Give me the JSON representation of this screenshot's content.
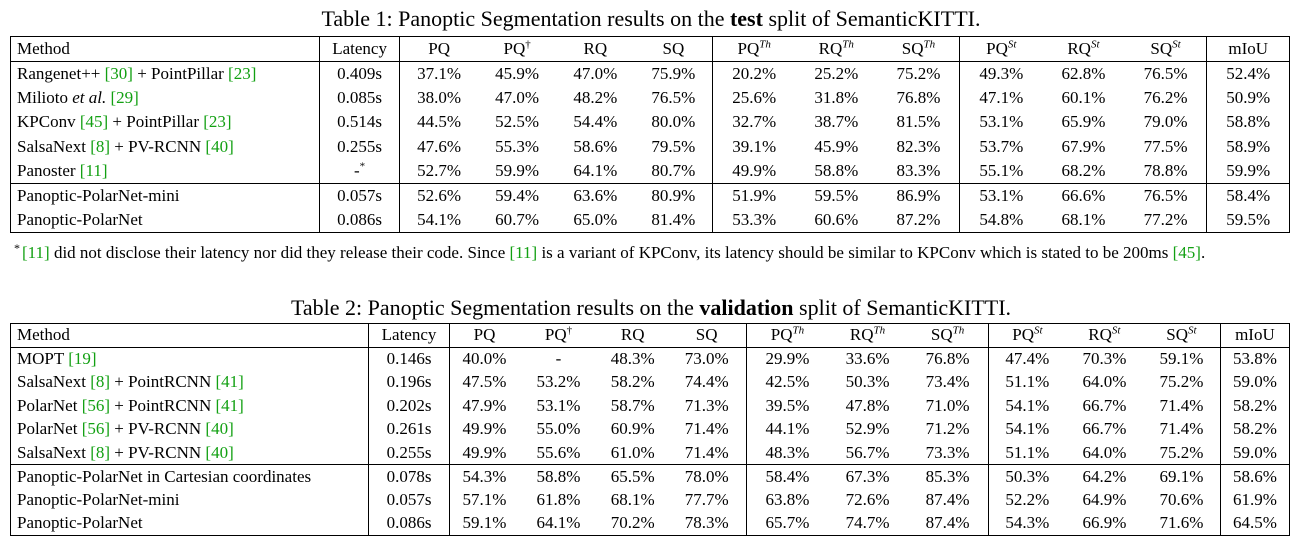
{
  "table1": {
    "caption_prefix": "Table 1: Panoptic Segmentation results on the ",
    "caption_bold": "test",
    "caption_suffix": " split of SemanticKITTI.",
    "headers": [
      "Method",
      "Latency",
      "PQ",
      "PQ",
      "RQ",
      "SQ",
      "PQ",
      "RQ",
      "SQ",
      "PQ",
      "RQ",
      "SQ",
      "mIoU"
    ],
    "header_sups": [
      "",
      "",
      "",
      "†",
      "",
      "",
      "Th",
      "Th",
      "Th",
      "St",
      "St",
      "St",
      ""
    ],
    "groups": [
      [
        {
          "method": [
            {
              "t": "Rangenet++ "
            },
            {
              "t": "[30]",
              "c": 1
            },
            {
              "t": " + PointPillar "
            },
            {
              "t": "[23]",
              "c": 1
            }
          ],
          "cells": [
            "0.409s",
            "37.1%",
            "45.9%",
            "47.0%",
            "75.9%",
            "20.2%",
            "25.2%",
            "75.2%",
            "49.3%",
            "62.8%",
            "76.5%",
            "52.4%"
          ],
          "bold": []
        },
        {
          "method": [
            {
              "t": "Milioto "
            },
            {
              "t": "et al.",
              "i": 1
            },
            {
              "t": " "
            },
            {
              "t": "[29]",
              "c": 1
            }
          ],
          "cells": [
            "0.085s",
            "38.0%",
            "47.0%",
            "48.2%",
            "76.5%",
            "25.6%",
            "31.8%",
            "76.8%",
            "47.1%",
            "60.1%",
            "76.2%",
            "50.9%"
          ],
          "bold": []
        },
        {
          "method": [
            {
              "t": "KPConv "
            },
            {
              "t": "[45]",
              "c": 1
            },
            {
              "t": " + PointPillar "
            },
            {
              "t": "[23]",
              "c": 1
            }
          ],
          "cells": [
            "0.514s",
            "44.5%",
            "52.5%",
            "54.4%",
            "80.0%",
            "32.7%",
            "38.7%",
            "81.5%",
            "53.1%",
            "65.9%",
            "79.0%",
            "58.8%"
          ],
          "bold": [
            10
          ]
        },
        {
          "method": [
            {
              "t": "SalsaNext "
            },
            {
              "t": "[8]",
              "c": 1
            },
            {
              "t": " + PV-RCNN "
            },
            {
              "t": "[40]",
              "c": 1
            }
          ],
          "cells": [
            "0.255s",
            "47.6%",
            "55.3%",
            "58.6%",
            "79.5%",
            "39.1%",
            "45.9%",
            "82.3%",
            "53.7%",
            "67.9%",
            "77.5%",
            "58.9%"
          ],
          "bold": []
        },
        {
          "method": [
            {
              "t": "Panoster "
            },
            {
              "t": "[11]",
              "c": 1
            }
          ],
          "cells": [
            "-",
            "52.7%",
            "59.9%",
            "64.1%",
            "80.7%",
            "49.9%",
            "58.8%",
            "83.3%",
            "55.1%",
            "68.2%",
            "78.8%",
            "59.9%"
          ],
          "bold": [
            8,
            9,
            11
          ],
          "latency_sup": "*"
        }
      ],
      [
        {
          "method": [
            {
              "t": "Panoptic-PolarNet-mini"
            }
          ],
          "cells": [
            "0.057s",
            "52.6%",
            "59.4%",
            "63.6%",
            "80.9%",
            "51.9%",
            "59.5%",
            "86.9%",
            "53.1%",
            "66.6%",
            "76.5%",
            "58.4%"
          ],
          "bold": []
        },
        {
          "method": [
            {
              "t": "Panoptic-PolarNet"
            }
          ],
          "cells": [
            "0.086s",
            "54.1%",
            "60.7%",
            "65.0%",
            "81.4%",
            "53.3%",
            "60.6%",
            "87.2%",
            "54.8%",
            "68.1%",
            "77.2%",
            "59.5%"
          ],
          "bold": [
            1,
            2,
            3,
            4,
            5,
            6,
            7
          ]
        }
      ]
    ]
  },
  "footnote": [
    {
      "t": "[11]",
      "c": 1
    },
    {
      "t": " did not disclose their latency nor did they release their code. Since "
    },
    {
      "t": "[11]",
      "c": 1
    },
    {
      "t": " is a variant of KPConv, its latency should be similar to KPConv which is stated to be 200ms "
    },
    {
      "t": "[45]",
      "c": 1
    },
    {
      "t": "."
    }
  ],
  "footnote_mark": "*",
  "table2": {
    "caption_prefix": "Table 2: Panoptic Segmentation results on the ",
    "caption_bold": "validation",
    "caption_suffix": " split of SemanticKITTI.",
    "headers": [
      "Method",
      "Latency",
      "PQ",
      "PQ",
      "RQ",
      "SQ",
      "PQ",
      "RQ",
      "SQ",
      "PQ",
      "RQ",
      "SQ",
      "mIoU"
    ],
    "header_sups": [
      "",
      "",
      "",
      "†",
      "",
      "",
      "Th",
      "Th",
      "Th",
      "St",
      "St",
      "St",
      ""
    ],
    "groups": [
      [
        {
          "method": [
            {
              "t": "MOPT "
            },
            {
              "t": "[19]",
              "c": 1
            }
          ],
          "cells": [
            "0.146s",
            "40.0%",
            "-",
            "48.3%",
            "73.0%",
            "29.9%",
            "33.6%",
            "76.8%",
            "47.4%",
            "70.3%",
            "59.1%",
            "53.8%"
          ],
          "bold": [
            9
          ]
        },
        {
          "method": [
            {
              "t": "SalsaNext "
            },
            {
              "t": "[8]",
              "c": 1
            },
            {
              "t": " + PointRCNN "
            },
            {
              "t": "[41]",
              "c": 1
            }
          ],
          "cells": [
            "0.196s",
            "47.5%",
            "53.2%",
            "58.2%",
            "74.4%",
            "42.5%",
            "50.3%",
            "73.4%",
            "51.1%",
            "64.0%",
            "75.2%",
            "59.0%"
          ],
          "bold": [
            10
          ]
        },
        {
          "method": [
            {
              "t": "PolarNet "
            },
            {
              "t": "[56]",
              "c": 1
            },
            {
              "t": " + PointRCNN "
            },
            {
              "t": "[41]",
              "c": 1
            }
          ],
          "cells": [
            "0.202s",
            "47.9%",
            "53.1%",
            "58.7%",
            "71.3%",
            "39.5%",
            "47.8%",
            "71.0%",
            "54.1%",
            "66.7%",
            "71.4%",
            "58.2%"
          ],
          "bold": []
        },
        {
          "method": [
            {
              "t": "PolarNet "
            },
            {
              "t": "[56]",
              "c": 1
            },
            {
              "t": " + PV-RCNN "
            },
            {
              "t": "[40]",
              "c": 1
            }
          ],
          "cells": [
            "0.261s",
            "49.9%",
            "55.0%",
            "60.9%",
            "71.4%",
            "44.1%",
            "52.9%",
            "71.2%",
            "54.1%",
            "66.7%",
            "71.4%",
            "58.2%"
          ],
          "bold": []
        },
        {
          "method": [
            {
              "t": "SalsaNext "
            },
            {
              "t": "[8]",
              "c": 1
            },
            {
              "t": " + PV-RCNN "
            },
            {
              "t": "[40]",
              "c": 1
            }
          ],
          "cells": [
            "0.255s",
            "49.9%",
            "55.6%",
            "61.0%",
            "71.4%",
            "48.3%",
            "56.7%",
            "73.3%",
            "51.1%",
            "64.0%",
            "75.2%",
            "59.0%"
          ],
          "bold": [
            10
          ]
        }
      ],
      [
        {
          "method": [
            {
              "t": "Panoptic-PolarNet in Cartesian coordinates"
            }
          ],
          "cells": [
            "0.078s",
            "54.3%",
            "58.8%",
            "65.5%",
            "78.0%",
            "58.4%",
            "67.3%",
            "85.3%",
            "50.3%",
            "64.2%",
            "69.1%",
            "58.6%"
          ],
          "bold": []
        },
        {
          "method": [
            {
              "t": "Panoptic-PolarNet-mini"
            }
          ],
          "cells": [
            "0.057s",
            "57.1%",
            "61.8%",
            "68.1%",
            "77.7%",
            "63.8%",
            "72.6%",
            "87.4%",
            "52.2%",
            "64.9%",
            "70.6%",
            "61.9%"
          ],
          "bold": [
            7
          ]
        },
        {
          "method": [
            {
              "t": "Panoptic-PolarNet"
            }
          ],
          "cells": [
            "0.086s",
            "59.1%",
            "64.1%",
            "70.2%",
            "78.3%",
            "65.7%",
            "74.7%",
            "87.4%",
            "54.3%",
            "66.9%",
            "71.6%",
            "64.5%"
          ],
          "bold": [
            1,
            2,
            3,
            4,
            5,
            6,
            7,
            8,
            11
          ]
        }
      ]
    ]
  }
}
